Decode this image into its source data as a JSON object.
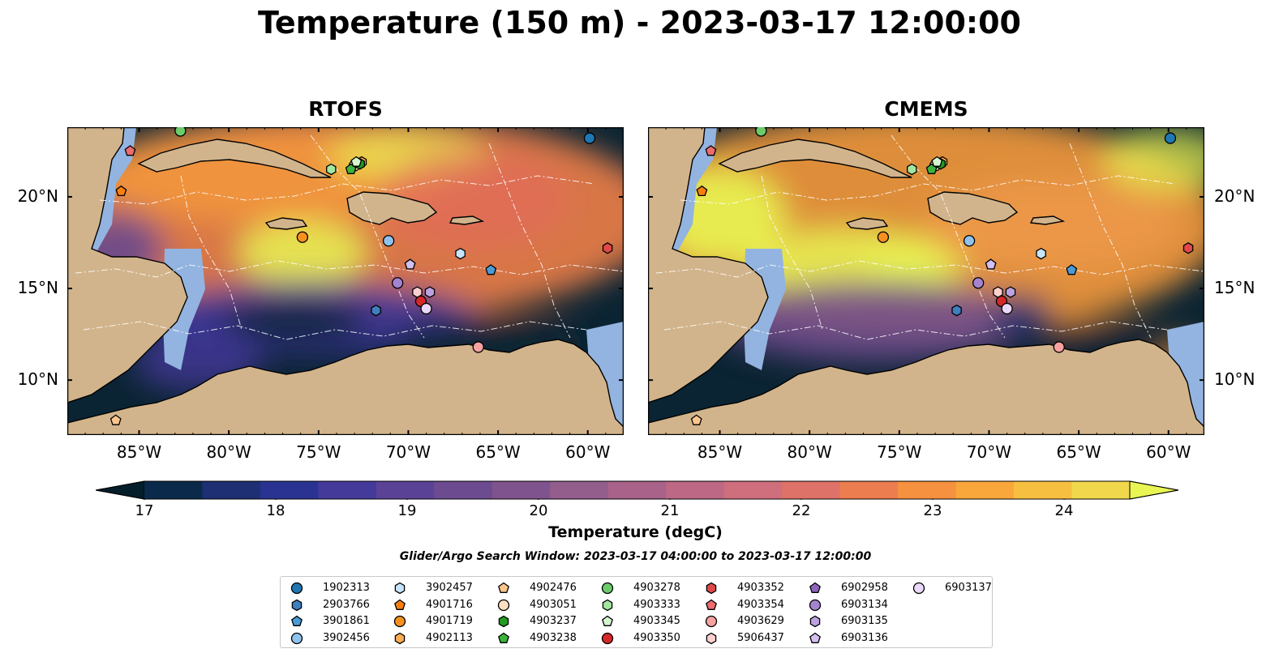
{
  "title": "Temperature (150 m) - 2023-03-17 12:00:00",
  "panels": [
    {
      "name": "rtofs",
      "title": "RTOFS"
    },
    {
      "name": "cmems",
      "title": "CMEMS"
    }
  ],
  "map": {
    "lon_ticks": [
      "85°W",
      "80°W",
      "75°W",
      "70°W",
      "65°W",
      "60°W"
    ],
    "lon_values": [
      -85,
      -80,
      -75,
      -70,
      -65,
      -60
    ],
    "lat_ticks": [
      "20°N",
      "15°N",
      "10°N"
    ],
    "lat_values": [
      20,
      15,
      10
    ],
    "extent_lon": [
      -89,
      -58
    ],
    "extent_lat": [
      7,
      23.8
    ],
    "land_color": "#d2b48c",
    "shelf_color": "#93b4e0",
    "hot_color": "#e8f552",
    "cold_color": "#0b2433"
  },
  "colorbar": {
    "label": "Temperature (degC)",
    "ticks": [
      "17",
      "18",
      "19",
      "20",
      "21",
      "22",
      "23",
      "24"
    ],
    "tick_values": [
      17,
      18,
      19,
      20,
      21,
      22,
      23,
      24
    ],
    "min": 16.75,
    "max": 24.5,
    "step": 0.5,
    "colors": [
      "#041e2b",
      "#0b2a4b",
      "#1e2f73",
      "#2a3391",
      "#433a9a",
      "#5a4396",
      "#6c4b90",
      "#7f538d",
      "#935d8c",
      "#a9628a",
      "#bd6884",
      "#cf6e7d",
      "#de7268",
      "#ec7d4e",
      "#f5913f",
      "#f9a63a",
      "#f7bf40",
      "#f1d74b",
      "#e8f552"
    ],
    "extend": "both"
  },
  "search_window": "Glider/Argo Search Window: 2023-03-17 04:00:00 to 2023-03-17 12:00:00",
  "legend": [
    {
      "id": "1902313",
      "color": "#1f77b4",
      "marker": "circle"
    },
    {
      "id": "2903766",
      "color": "#3f7fbf",
      "marker": "hexagon"
    },
    {
      "id": "3901861",
      "color": "#4a9bd6",
      "marker": "pentagon"
    },
    {
      "id": "3902456",
      "color": "#8fc3ee",
      "marker": "circle"
    },
    {
      "id": "3902457",
      "color": "#c6e4fb",
      "marker": "hexagon"
    },
    {
      "id": "4901716",
      "color": "#f77f0e",
      "marker": "pentagon"
    },
    {
      "id": "4901719",
      "color": "#f7901e",
      "marker": "circle"
    },
    {
      "id": "4902113",
      "color": "#f9ad55",
      "marker": "hexagon"
    },
    {
      "id": "4902476",
      "color": "#fdc58e",
      "marker": "pentagon"
    },
    {
      "id": "4903051",
      "color": "#fde0c2",
      "marker": "circle"
    },
    {
      "id": "4903237",
      "color": "#239a23",
      "marker": "hexagon"
    },
    {
      "id": "4903238",
      "color": "#3cb43c",
      "marker": "pentagon"
    },
    {
      "id": "4903278",
      "color": "#6ccc6c",
      "marker": "circle"
    },
    {
      "id": "4903333",
      "color": "#a3e6a0",
      "marker": "hexagon"
    },
    {
      "id": "4903345",
      "color": "#d4f7cf",
      "marker": "pentagon"
    },
    {
      "id": "4903350",
      "color": "#d62728",
      "marker": "circle"
    },
    {
      "id": "4903352",
      "color": "#e0484a",
      "marker": "hexagon"
    },
    {
      "id": "4903354",
      "color": "#ec6c70",
      "marker": "pentagon"
    },
    {
      "id": "4903629",
      "color": "#f7a1a0",
      "marker": "circle"
    },
    {
      "id": "5906437",
      "color": "#fbd0cf",
      "marker": "hexagon"
    },
    {
      "id": "6902958",
      "color": "#8e65bd",
      "marker": "pentagon"
    },
    {
      "id": "6903134",
      "color": "#a584cf",
      "marker": "circle"
    },
    {
      "id": "6903135",
      "color": "#bea2e0",
      "marker": "hexagon"
    },
    {
      "id": "6903136",
      "color": "#d4bff0",
      "marker": "pentagon"
    },
    {
      "id": "6903137",
      "color": "#ead9f8",
      "marker": "circle"
    }
  ]
}
